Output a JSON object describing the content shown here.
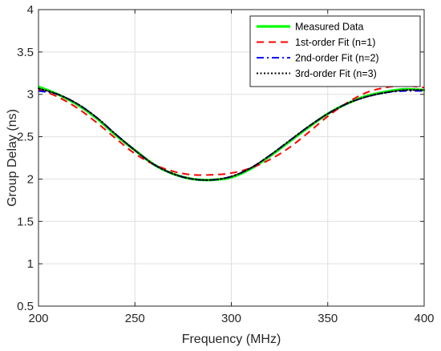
{
  "chart_data": {
    "type": "line",
    "title": "",
    "xlabel": "Frequency (MHz)",
    "ylabel": "Group Delay (ns)",
    "xlim": [
      200,
      400
    ],
    "ylim": [
      0.5,
      4
    ],
    "xticks": [
      200,
      250,
      300,
      350,
      400
    ],
    "yticks": [
      0.5,
      1,
      1.5,
      2,
      2.5,
      3,
      3.5,
      4
    ],
    "xtick_labels": [
      "200",
      "250",
      "300",
      "350",
      "400"
    ],
    "ytick_labels": [
      "0.5",
      "1",
      "1.5",
      "2",
      "2.5",
      "3",
      "3.5",
      "4"
    ],
    "grid": true,
    "legend_position": "top-right",
    "x": [
      200,
      210,
      220,
      230,
      240,
      250,
      260,
      270,
      280,
      290,
      300,
      310,
      320,
      330,
      340,
      350,
      360,
      370,
      380,
      390,
      400
    ],
    "series": [
      {
        "name": "Measured Data",
        "color": "#00ff00",
        "style": "solid",
        "values": [
          3.09,
          3.0,
          2.88,
          2.72,
          2.52,
          2.34,
          2.17,
          2.06,
          2.0,
          1.99,
          2.02,
          2.12,
          2.27,
          2.44,
          2.61,
          2.77,
          2.89,
          2.98,
          3.03,
          3.06,
          3.05
        ]
      },
      {
        "name": "1st-order Fit (n=1)",
        "color": "#ff0000",
        "style": "dashed",
        "values": [
          3.06,
          2.97,
          2.84,
          2.67,
          2.48,
          2.3,
          2.17,
          2.09,
          2.05,
          2.05,
          2.07,
          2.13,
          2.23,
          2.37,
          2.55,
          2.74,
          2.9,
          3.02,
          3.08,
          3.1,
          3.08
        ]
      },
      {
        "name": "2nd-order Fit (n=2)",
        "color": "#0000ff",
        "style": "dashdot",
        "values": [
          3.04,
          3.0,
          2.89,
          2.73,
          2.53,
          2.34,
          2.17,
          2.06,
          2.0,
          1.99,
          2.03,
          2.13,
          2.28,
          2.45,
          2.62,
          2.77,
          2.89,
          2.97,
          3.02,
          3.04,
          3.04
        ]
      },
      {
        "name": "3rd-order Fit (n=3)",
        "color": "#000000",
        "style": "dotted",
        "values": [
          3.07,
          3.0,
          2.89,
          2.73,
          2.53,
          2.34,
          2.17,
          2.06,
          2.0,
          1.99,
          2.03,
          2.13,
          2.28,
          2.45,
          2.62,
          2.77,
          2.89,
          2.97,
          3.02,
          3.05,
          3.05
        ]
      }
    ]
  }
}
